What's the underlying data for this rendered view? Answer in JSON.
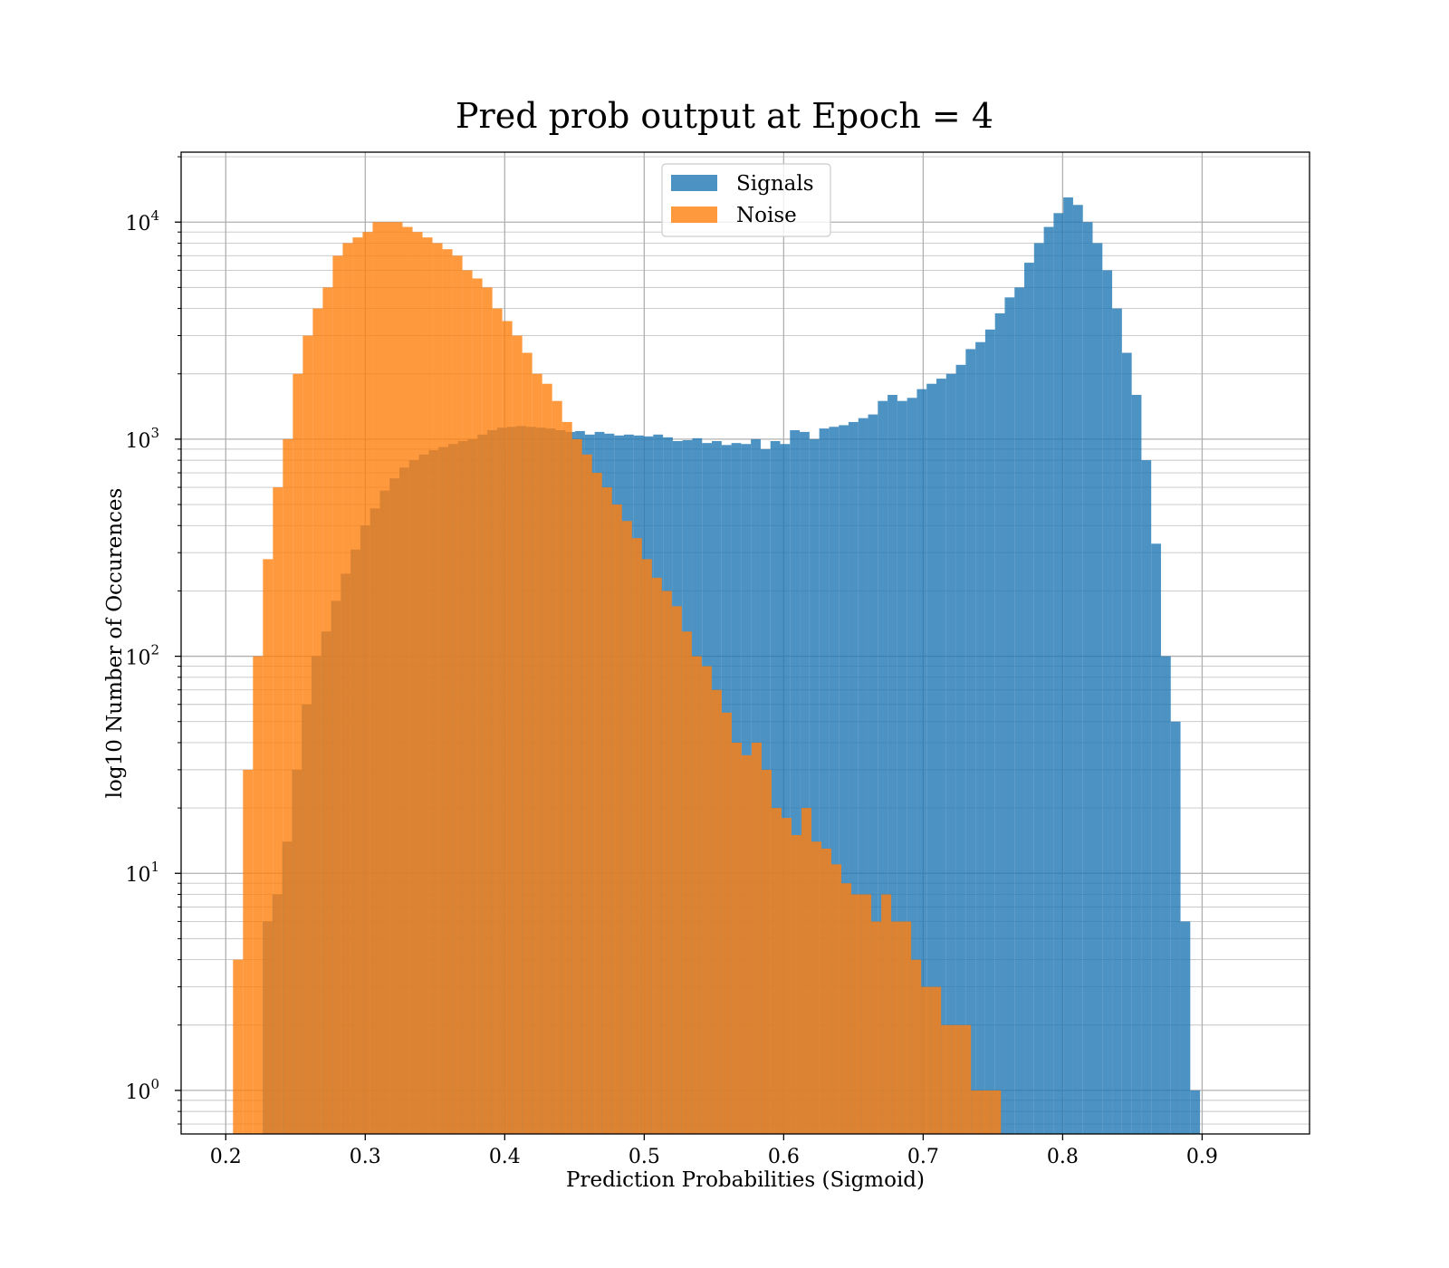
{
  "chart_data": {
    "type": "bar",
    "histogram": true,
    "title": "Pred prob output at Epoch = 4",
    "xlabel": "Prediction Probabilities (Sigmoid)",
    "ylabel": "log10 Number of Occurences",
    "xlim": [
      0.168,
      0.977
    ],
    "ylim": [
      0.63,
      21000
    ],
    "yscale": "log",
    "grid": true,
    "legend_position": "top-center",
    "x_ticks": [
      "0.2",
      "0.3",
      "0.4",
      "0.5",
      "0.6",
      "0.7",
      "0.8",
      "0.9"
    ],
    "y_ticks": [
      {
        "value": 1,
        "base": "10",
        "exp": "0"
      },
      {
        "value": 10,
        "base": "10",
        "exp": "1"
      },
      {
        "value": 100,
        "base": "10",
        "exp": "2"
      },
      {
        "value": 1000,
        "base": "10",
        "exp": "3"
      },
      {
        "value": 10000,
        "base": "10",
        "exp": "4"
      }
    ],
    "series": [
      {
        "name": "Signals",
        "color": "#1f77b4",
        "opacity": 0.8,
        "bin_start": 0.2265,
        "bin_width": 0.007,
        "counts": [
          6,
          8,
          14,
          30,
          60,
          100,
          130,
          180,
          240,
          310,
          400,
          480,
          580,
          660,
          740,
          800,
          850,
          890,
          920,
          950,
          980,
          1000,
          1050,
          1100,
          1130,
          1140,
          1150,
          1140,
          1130,
          1120,
          1100,
          1080,
          1090,
          1050,
          1080,
          1060,
          1040,
          1050,
          1040,
          1030,
          1050,
          1020,
          980,
          990,
          1010,
          960,
          980,
          940,
          960,
          950,
          1000,
          900,
          980,
          950,
          1100,
          1080,
          1000,
          1120,
          1140,
          1160,
          1200,
          1250,
          1300,
          1500,
          1600,
          1500,
          1550,
          1700,
          1800,
          1900,
          2000,
          2200,
          2600,
          2800,
          3200,
          3800,
          4500,
          5000,
          6500,
          8000,
          9500,
          11000,
          13000,
          12000,
          10000,
          8000,
          6000,
          4000,
          2500,
          1600,
          800,
          330,
          100,
          50,
          6,
          1
        ]
      },
      {
        "name": "Noise",
        "color": "#ff7f0e",
        "opacity": 0.8,
        "bin_start": 0.2052,
        "bin_width": 0.00715,
        "counts": [
          4,
          30,
          100,
          280,
          600,
          1000,
          2000,
          3000,
          4000,
          5000,
          7000,
          8000,
          8500,
          9000,
          10000,
          10000,
          10000,
          9500,
          9000,
          8500,
          8000,
          7500,
          7000,
          6000,
          5500,
          5000,
          4000,
          3500,
          3000,
          2500,
          2000,
          1800,
          1500,
          1200,
          1000,
          850,
          700,
          600,
          500,
          420,
          350,
          280,
          230,
          200,
          170,
          130,
          100,
          90,
          70,
          55,
          40,
          35,
          40,
          30,
          20,
          18,
          15,
          20,
          14,
          13,
          11,
          9,
          8,
          8,
          6,
          8,
          6,
          6,
          4,
          3,
          3,
          2,
          2,
          2,
          1,
          1,
          1
        ]
      }
    ]
  }
}
